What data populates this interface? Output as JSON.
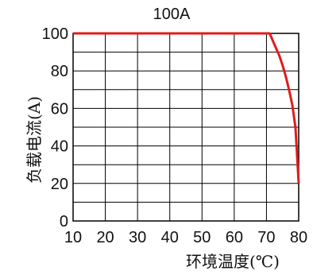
{
  "chart_data": {
    "type": "line",
    "title": "100A",
    "xlabel": "环境温度(℃)",
    "ylabel": "负载电流(A)",
    "xlim": [
      10,
      80
    ],
    "ylim": [
      0,
      100
    ],
    "x_ticks": [
      "10",
      "20",
      "30",
      "40",
      "50",
      "60",
      "70",
      "80"
    ],
    "y_ticks": [
      "0",
      "20",
      "40",
      "60",
      "80",
      "100"
    ],
    "grid": true,
    "legend": "none",
    "line_color": "#e21b1b",
    "series": [
      {
        "x": [
          10,
          70,
          71,
          72,
          73,
          74,
          75,
          76,
          77,
          78,
          79,
          80
        ],
        "values": [
          100,
          100,
          100,
          96,
          92,
          88,
          83,
          77,
          70,
          62,
          50,
          20
        ]
      }
    ]
  }
}
